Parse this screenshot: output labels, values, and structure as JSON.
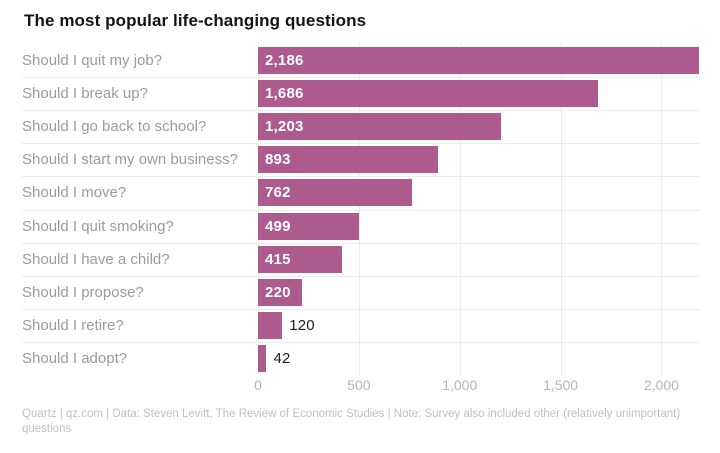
{
  "title": "The most popular life-changing questions",
  "chart_data": {
    "type": "bar",
    "orientation": "horizontal",
    "title": "The most popular life-changing questions",
    "categories": [
      "Should I quit my job?",
      "Should I break up?",
      "Should I go back to school?",
      "Should I start my own business?",
      "Should I move?",
      "Should I quit smoking?",
      "Should I have a child?",
      "Should I propose?",
      "Should I retire?",
      "Should I adopt?"
    ],
    "values": [
      2186,
      1686,
      1203,
      893,
      762,
      499,
      415,
      220,
      120,
      42
    ],
    "value_labels": [
      "2,186",
      "1,686",
      "1,203",
      "893",
      "762",
      "499",
      "415",
      "220",
      "120",
      "42"
    ],
    "xlabel": "",
    "ylabel": "",
    "xlim": [
      0,
      2186
    ],
    "x_ticks": [
      0,
      500,
      1000,
      1500,
      2000
    ],
    "x_tick_labels": [
      "0",
      "500",
      "1,000",
      "1,500",
      "2,000"
    ],
    "grid": "vertical-gridlines-and-row-separators",
    "legend": "none",
    "bar_color": "#ad5a8e",
    "value_label_inside_color": "#ffffff",
    "value_label_outside_color": "#1f1f1f"
  },
  "colors": {
    "background": "#ffffff",
    "title_text": "#141414",
    "category_text": "#9b9b9b",
    "axis_tick_text": "#b5b5b5",
    "gridline": "#ececec",
    "bar_fill": "#ad5a8e"
  },
  "footer": {
    "text": "Quartz | qz.com | Data: Steven Levitt, The Review of Economic Studies | Note: Survey also included other (relatively unimportant) questions"
  }
}
